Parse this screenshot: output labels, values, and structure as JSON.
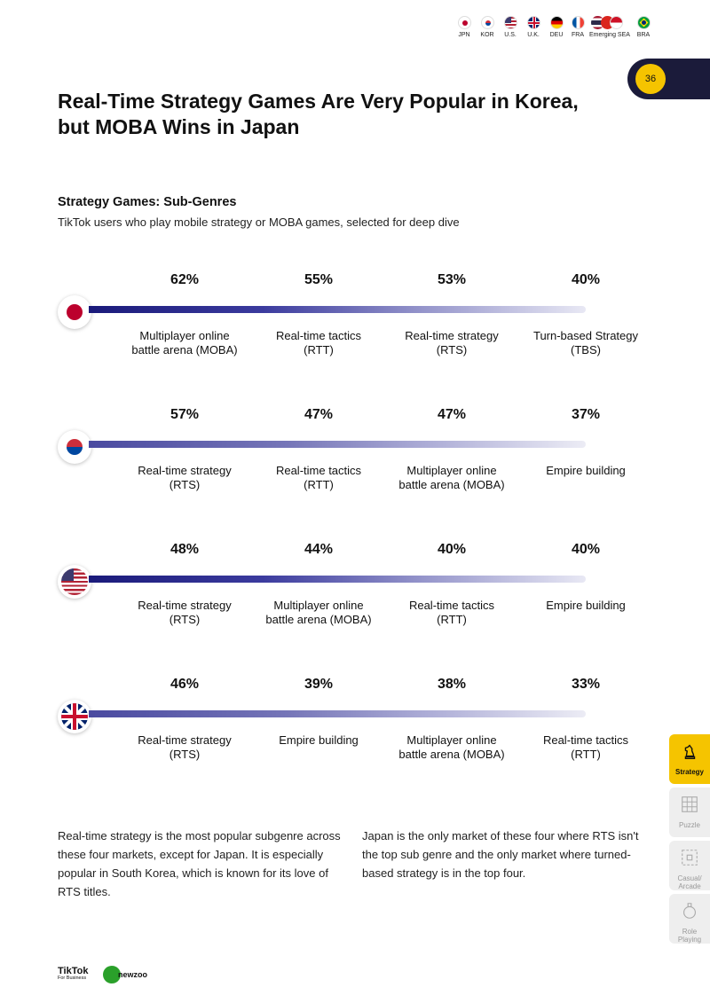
{
  "nav": {
    "flags": [
      {
        "code": "JPN",
        "icon": "japan-flag-icon"
      },
      {
        "code": "KOR",
        "icon": "korea-flag-icon"
      },
      {
        "code": "U.S.",
        "icon": "us-flag-icon"
      },
      {
        "code": "U.K.",
        "icon": "uk-flag-icon"
      },
      {
        "code": "DEU",
        "icon": "germany-flag-icon"
      },
      {
        "code": "FRA",
        "icon": "france-flag-icon"
      },
      {
        "code": "Emerging SEA",
        "icon": "sea-flags-icon"
      },
      {
        "code": "BRA",
        "icon": "brazil-flag-icon"
      }
    ]
  },
  "page_number": "36",
  "title": "Real-Time Strategy Games Are Very Popular in Korea, but MOBA Wins in Japan",
  "section": {
    "heading": "Strategy Games: Sub-Genres",
    "description": "TikTok users who play mobile strategy or MOBA games, selected for deep dive"
  },
  "markets": [
    {
      "flag": "japan-flag-icon",
      "items": [
        {
          "pct": "62%",
          "label": "Multiplayer online\nbattle arena (MOBA)"
        },
        {
          "pct": "55%",
          "label": "Real-time tactics\n(RTT)"
        },
        {
          "pct": "53%",
          "label": "Real-time strategy\n(RTS)"
        },
        {
          "pct": "40%",
          "label": "Turn-based Strategy\n(TBS)"
        }
      ]
    },
    {
      "flag": "korea-flag-icon",
      "items": [
        {
          "pct": "57%",
          "label": "Real-time strategy\n(RTS)"
        },
        {
          "pct": "47%",
          "label": "Real-time tactics\n(RTT)"
        },
        {
          "pct": "47%",
          "label": "Multiplayer online\nbattle arena (MOBA)"
        },
        {
          "pct": "37%",
          "label": "Empire building"
        }
      ]
    },
    {
      "flag": "us-flag-icon",
      "items": [
        {
          "pct": "48%",
          "label": "Real-time strategy\n(RTS)"
        },
        {
          "pct": "44%",
          "label": "Multiplayer online\nbattle arena (MOBA)"
        },
        {
          "pct": "40%",
          "label": "Real-time tactics\n(RTT)"
        },
        {
          "pct": "40%",
          "label": "Empire building"
        }
      ]
    },
    {
      "flag": "uk-flag-icon",
      "items": [
        {
          "pct": "46%",
          "label": "Real-time strategy\n(RTS)"
        },
        {
          "pct": "39%",
          "label": "Empire building"
        },
        {
          "pct": "38%",
          "label": "Multiplayer online\nbattle arena (MOBA)"
        },
        {
          "pct": "33%",
          "label": "Real-time tactics\n(RTT)"
        }
      ]
    }
  ],
  "body": {
    "left": "Real-time strategy is the most popular subgenre across these four markets, except for Japan. It is especially popular in South Korea, which is known for its love of RTS titles.",
    "right": "Japan is the only market of these four where RTS isn't the top sub genre and the only market where turned-based strategy is in the top four."
  },
  "sidebar": [
    {
      "label": "Strategy",
      "icon": "chess-knight-icon",
      "active": true
    },
    {
      "label": "Puzzle",
      "icon": "puzzle-icon",
      "active": false
    },
    {
      "label": "Casual/\nArcade",
      "icon": "arcade-icon",
      "active": false
    },
    {
      "label": "Role\nPlaying",
      "icon": "potion-icon",
      "active": false
    }
  ],
  "footer": {
    "tiktok": "TikTok",
    "tiktok_sub": "For Business",
    "newzoo": "newzoo"
  }
}
